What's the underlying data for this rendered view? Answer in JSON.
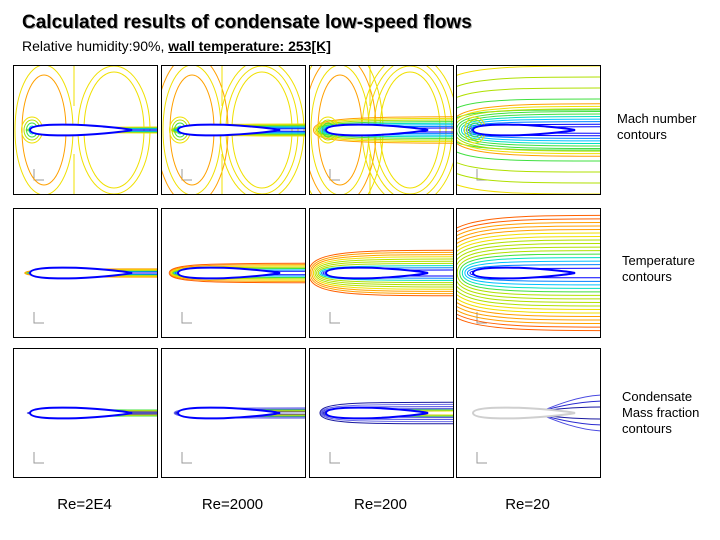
{
  "title": "Calculated results of condensate low-speed flows",
  "subtitle": {
    "prefix": "Relative humidity:90%,",
    "emphasis": "wall temperature: 253[K]"
  },
  "rows": [
    {
      "label": "Mach number\ncontours"
    },
    {
      "label": "Temperature\ncontours"
    },
    {
      "label": "Condensate\nMass fraction\ncontours"
    }
  ],
  "columns": [
    {
      "label": "Re=2E4"
    },
    {
      "label": "Re=2000"
    },
    {
      "label": "Re=200"
    },
    {
      "label": "Re=20"
    }
  ],
  "colors": {
    "contour_palette": [
      "#0000ff",
      "#0080ff",
      "#00c0ff",
      "#00e0c0",
      "#40e040",
      "#b0e000",
      "#f0e000",
      "#ffa000",
      "#ff6000"
    ],
    "condensate_palette": [
      "#1a1aa0",
      "#2a2ad0",
      "#4848e0",
      "#6a6ae8"
    ]
  }
}
